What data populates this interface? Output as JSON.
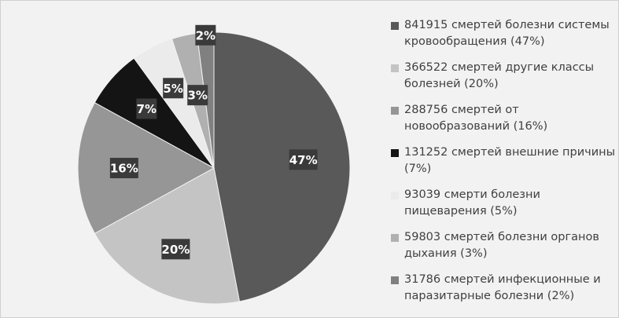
{
  "chart_data": {
    "type": "pie",
    "categories": [
      "841915 смертей болезни системы кровообращения (47%)",
      "366522 смертей другие классы болезней (20%)",
      "288756 смертей от новообразований (16%)",
      "131252 смертей внешние причины (7%)",
      "93039 смерти болезни пищеварения (5%)",
      "59803 смертей болезни органов дыхания (3%)",
      "31786 смертей инфекционные и паразитарные болезни (2%)"
    ],
    "values": [
      47,
      20,
      16,
      7,
      5,
      3,
      2
    ],
    "value_labels": [
      "47%",
      "20%",
      "16%",
      "7%",
      "5%",
      "3%",
      "2%"
    ],
    "colors": [
      "#595959",
      "#c4c4c4",
      "#969696",
      "#141414",
      "#ebebeb",
      "#b0b0b0",
      "#808080"
    ],
    "legend": "right"
  }
}
